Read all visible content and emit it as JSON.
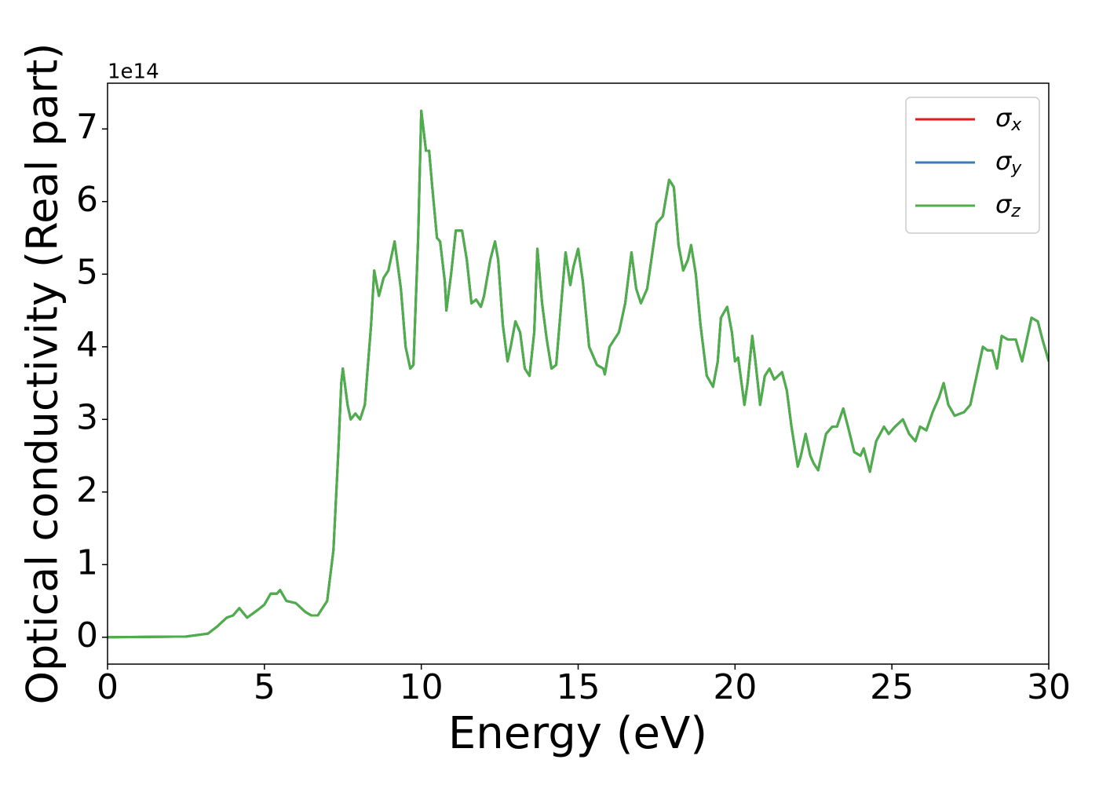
{
  "chart_data": {
    "type": "line",
    "xlabel": "Energy (eV)",
    "ylabel": "Optical conductivity (Real part)",
    "y_offset": "1e14",
    "x": [
      0,
      2.5,
      3.2,
      3.5,
      3.8,
      4.0,
      4.2,
      4.45,
      4.8,
      5.0,
      5.2,
      5.4,
      5.5,
      5.7,
      6.0,
      6.3,
      6.5,
      6.7,
      7.0,
      7.2,
      7.35,
      7.45,
      7.5,
      7.65,
      7.75,
      7.9,
      8.05,
      8.2,
      8.4,
      8.5,
      8.65,
      8.8,
      8.95,
      9.15,
      9.35,
      9.5,
      9.65,
      9.75,
      9.9,
      10.0,
      10.15,
      10.25,
      10.35,
      10.5,
      10.6,
      10.75,
      10.8,
      10.95,
      11.1,
      11.3,
      11.45,
      11.6,
      11.75,
      11.9,
      12.0,
      12.2,
      12.35,
      12.45,
      12.6,
      12.75,
      12.85,
      13.0,
      13.15,
      13.3,
      13.45,
      13.6,
      13.7,
      13.85,
      14.0,
      14.15,
      14.3,
      14.5,
      14.6,
      14.75,
      14.85,
      15.0,
      15.15,
      15.35,
      15.6,
      15.8,
      15.85,
      16.0,
      16.3,
      16.5,
      16.7,
      16.85,
      17.0,
      17.2,
      17.5,
      17.7,
      17.9,
      18.05,
      18.2,
      18.35,
      18.5,
      18.6,
      18.75,
      18.9,
      19.1,
      19.3,
      19.45,
      19.55,
      19.75,
      19.9,
      20.0,
      20.1,
      20.3,
      20.4,
      20.55,
      20.65,
      20.8,
      20.95,
      21.1,
      21.25,
      21.5,
      21.65,
      21.8,
      22.0,
      22.1,
      22.25,
      22.4,
      22.5,
      22.65,
      22.9,
      23.1,
      23.25,
      23.45,
      23.6,
      23.8,
      24.0,
      24.1,
      24.3,
      24.5,
      24.75,
      24.9,
      25.1,
      25.35,
      25.55,
      25.75,
      25.9,
      26.1,
      26.3,
      26.5,
      26.65,
      26.8,
      27.0,
      27.3,
      27.5,
      27.75,
      27.9,
      28.05,
      28.2,
      28.35,
      28.5,
      28.7,
      28.95,
      29.15,
      29.45,
      29.65,
      29.8,
      30
    ],
    "series": [
      {
        "name": "σx",
        "color": "#e41a1c",
        "values": [
          0,
          0.01,
          0.05,
          0.15,
          0.27,
          0.3,
          0.4,
          0.27,
          0.38,
          0.45,
          0.6,
          0.6,
          0.65,
          0.5,
          0.47,
          0.35,
          0.3,
          0.3,
          0.5,
          1.2,
          2.5,
          3.5,
          3.7,
          3.2,
          3.0,
          3.08,
          3.0,
          3.2,
          4.3,
          5.05,
          4.7,
          4.95,
          5.05,
          5.45,
          4.8,
          4.0,
          3.7,
          3.75,
          5.5,
          7.25,
          6.7,
          6.7,
          6.2,
          5.5,
          5.45,
          4.9,
          4.5,
          5.0,
          5.6,
          5.6,
          5.2,
          4.6,
          4.65,
          4.55,
          4.7,
          5.2,
          5.45,
          5.2,
          4.3,
          3.8,
          4.0,
          4.35,
          4.2,
          3.7,
          3.6,
          4.2,
          5.35,
          4.6,
          4.1,
          3.7,
          3.75,
          4.8,
          5.3,
          4.85,
          5.1,
          5.35,
          4.9,
          4.0,
          3.75,
          3.7,
          3.62,
          4.0,
          4.2,
          4.6,
          5.3,
          4.8,
          4.6,
          4.8,
          5.7,
          5.8,
          6.3,
          6.2,
          5.4,
          5.05,
          5.2,
          5.4,
          5.0,
          4.3,
          3.6,
          3.45,
          3.8,
          4.4,
          4.55,
          4.2,
          3.8,
          3.85,
          3.2,
          3.5,
          4.15,
          3.8,
          3.2,
          3.6,
          3.7,
          3.55,
          3.65,
          3.4,
          2.9,
          2.35,
          2.5,
          2.8,
          2.5,
          2.4,
          2.3,
          2.8,
          2.9,
          2.9,
          3.15,
          2.9,
          2.55,
          2.5,
          2.6,
          2.28,
          2.7,
          2.9,
          2.8,
          2.9,
          3.0,
          2.8,
          2.7,
          2.9,
          2.85,
          3.1,
          3.3,
          3.5,
          3.2,
          3.05,
          3.1,
          3.2,
          3.7,
          4.0,
          3.95,
          3.95,
          3.7,
          4.15,
          4.1,
          4.1,
          3.8,
          4.4,
          4.35,
          4.1,
          3.8
        ]
      },
      {
        "name": "σy",
        "color": "#377eb8",
        "values": [
          0,
          0.01,
          0.05,
          0.15,
          0.27,
          0.3,
          0.4,
          0.27,
          0.38,
          0.45,
          0.6,
          0.6,
          0.65,
          0.5,
          0.47,
          0.35,
          0.3,
          0.3,
          0.5,
          1.2,
          2.5,
          3.5,
          3.7,
          3.2,
          3.0,
          3.08,
          3.0,
          3.2,
          4.3,
          5.05,
          4.7,
          4.95,
          5.05,
          5.45,
          4.8,
          4.0,
          3.7,
          3.75,
          5.5,
          7.25,
          6.7,
          6.7,
          6.2,
          5.5,
          5.45,
          4.9,
          4.5,
          5.0,
          5.6,
          5.6,
          5.2,
          4.6,
          4.65,
          4.55,
          4.7,
          5.2,
          5.45,
          5.2,
          4.3,
          3.8,
          4.0,
          4.35,
          4.2,
          3.7,
          3.6,
          4.2,
          5.35,
          4.6,
          4.1,
          3.7,
          3.75,
          4.8,
          5.3,
          4.85,
          5.1,
          5.35,
          4.9,
          4.0,
          3.75,
          3.7,
          3.62,
          4.0,
          4.2,
          4.6,
          5.3,
          4.8,
          4.6,
          4.8,
          5.7,
          5.8,
          6.3,
          6.2,
          5.4,
          5.05,
          5.2,
          5.4,
          5.0,
          4.3,
          3.6,
          3.45,
          3.8,
          4.4,
          4.55,
          4.2,
          3.8,
          3.85,
          3.2,
          3.5,
          4.15,
          3.8,
          3.2,
          3.6,
          3.7,
          3.55,
          3.65,
          3.4,
          2.9,
          2.35,
          2.5,
          2.8,
          2.5,
          2.4,
          2.3,
          2.8,
          2.9,
          2.9,
          3.15,
          2.9,
          2.55,
          2.5,
          2.6,
          2.28,
          2.7,
          2.9,
          2.8,
          2.9,
          3.0,
          2.8,
          2.7,
          2.9,
          2.85,
          3.1,
          3.3,
          3.5,
          3.2,
          3.05,
          3.1,
          3.2,
          3.7,
          4.0,
          3.95,
          3.95,
          3.7,
          4.15,
          4.1,
          4.1,
          3.8,
          4.4,
          4.35,
          4.1,
          3.8
        ]
      },
      {
        "name": "σz",
        "color": "#4daf4a",
        "values": [
          0,
          0.01,
          0.05,
          0.15,
          0.27,
          0.3,
          0.4,
          0.27,
          0.38,
          0.45,
          0.6,
          0.6,
          0.65,
          0.5,
          0.47,
          0.35,
          0.3,
          0.3,
          0.5,
          1.2,
          2.5,
          3.5,
          3.7,
          3.2,
          3.0,
          3.08,
          3.0,
          3.2,
          4.3,
          5.05,
          4.7,
          4.95,
          5.05,
          5.45,
          4.8,
          4.0,
          3.7,
          3.75,
          5.5,
          7.25,
          6.7,
          6.7,
          6.2,
          5.5,
          5.45,
          4.9,
          4.5,
          5.0,
          5.6,
          5.6,
          5.2,
          4.6,
          4.65,
          4.55,
          4.7,
          5.2,
          5.45,
          5.2,
          4.3,
          3.8,
          4.0,
          4.35,
          4.2,
          3.7,
          3.6,
          4.2,
          5.35,
          4.6,
          4.1,
          3.7,
          3.75,
          4.8,
          5.3,
          4.85,
          5.1,
          5.35,
          4.9,
          4.0,
          3.75,
          3.7,
          3.62,
          4.0,
          4.2,
          4.6,
          5.3,
          4.8,
          4.6,
          4.8,
          5.7,
          5.8,
          6.3,
          6.2,
          5.4,
          5.05,
          5.2,
          5.4,
          5.0,
          4.3,
          3.6,
          3.45,
          3.8,
          4.4,
          4.55,
          4.2,
          3.8,
          3.85,
          3.2,
          3.5,
          4.15,
          3.8,
          3.2,
          3.6,
          3.7,
          3.55,
          3.65,
          3.4,
          2.9,
          2.35,
          2.5,
          2.8,
          2.5,
          2.4,
          2.3,
          2.8,
          2.9,
          2.9,
          3.15,
          2.9,
          2.55,
          2.5,
          2.6,
          2.28,
          2.7,
          2.9,
          2.8,
          2.9,
          3.0,
          2.8,
          2.7,
          2.9,
          2.85,
          3.1,
          3.3,
          3.5,
          3.2,
          3.05,
          3.1,
          3.2,
          3.7,
          4.0,
          3.95,
          3.95,
          3.7,
          4.15,
          4.1,
          4.1,
          3.8,
          4.4,
          4.35,
          4.1,
          3.8
        ]
      }
    ],
    "xlim": [
      0,
      30
    ],
    "xticks": [
      0,
      5,
      10,
      15,
      20,
      25,
      30
    ],
    "ylim": [
      -0.37,
      7.63
    ],
    "yticks": [
      0,
      1,
      2,
      3,
      4,
      5,
      6,
      7
    ],
    "grid": false,
    "legend": "upper right"
  }
}
